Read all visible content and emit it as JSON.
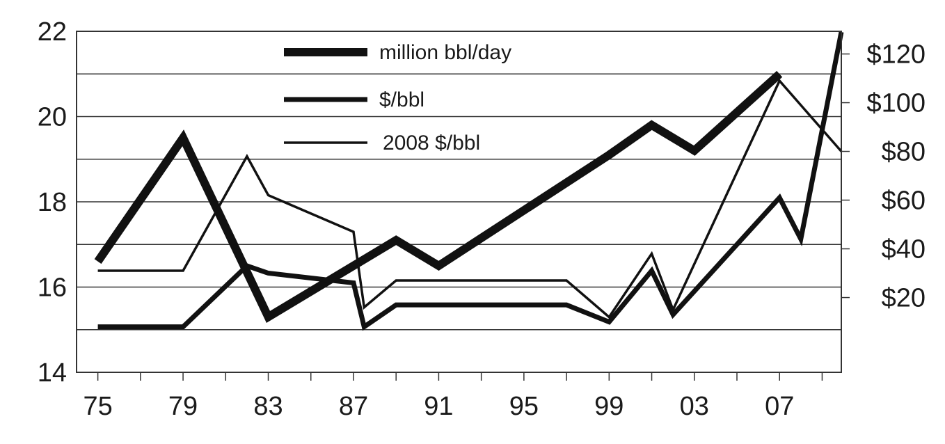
{
  "chart_data": {
    "type": "line",
    "title": "",
    "xlabel": "",
    "ylabel_left": "",
    "ylabel_right": "",
    "x": [
      1975,
      1979,
      1983,
      1987,
      1991,
      1995,
      1999,
      2003,
      2007
    ],
    "x_tick_labels": [
      "75",
      "79",
      "83",
      "87",
      "91",
      "95",
      "99",
      "03",
      "07"
    ],
    "xlim": [
      1974,
      2009.9
    ],
    "left_axis": {
      "ylim": [
        14,
        22
      ],
      "ticks": [
        14,
        16,
        18,
        20,
        22
      ],
      "tick_labels": [
        "14",
        "16",
        "18",
        "20",
        "22"
      ]
    },
    "right_axis": {
      "ylim": [
        -10.7,
        129.3
      ],
      "ticks": [
        20,
        40,
        60,
        80,
        100,
        120
      ],
      "tick_labels": [
        "$20",
        "$40",
        "$60",
        "$80",
        "$100",
        "$120"
      ]
    },
    "grid": {
      "horizontal": true,
      "vertical": false
    },
    "legend": {
      "placement": "top-center"
    },
    "series": [
      {
        "name": "million bbl/day",
        "axis": "left",
        "stroke": "#111111",
        "style": "thick",
        "points": [
          [
            1975,
            16.6
          ],
          [
            1979,
            19.5
          ],
          [
            1983,
            15.3
          ],
          [
            1989,
            17.1
          ],
          [
            1991,
            16.5
          ],
          [
            1999,
            19.1
          ],
          [
            2001,
            19.8
          ],
          [
            2003,
            19.2
          ],
          [
            2007,
            21.0
          ]
        ]
      },
      {
        "name": "$/bbl",
        "axis": "right",
        "stroke": "#111111",
        "style": "medium",
        "points": [
          [
            1975,
            8
          ],
          [
            1979,
            8
          ],
          [
            1982,
            33
          ],
          [
            1983,
            30
          ],
          [
            1987,
            26
          ],
          [
            1987.5,
            8
          ],
          [
            1989,
            17
          ],
          [
            1997,
            17
          ],
          [
            1999,
            10
          ],
          [
            2001,
            31
          ],
          [
            2002,
            13
          ],
          [
            2007,
            61
          ],
          [
            2008,
            44
          ],
          [
            2009.9,
            129
          ]
        ]
      },
      {
        "name": "2008 $/bbl",
        "axis": "right",
        "stroke": "#111111",
        "style": "thin",
        "points": [
          [
            1975,
            31
          ],
          [
            1979,
            31
          ],
          [
            1982,
            78
          ],
          [
            1983,
            62
          ],
          [
            1987,
            47
          ],
          [
            1987.5,
            16
          ],
          [
            1989,
            27
          ],
          [
            1997,
            27
          ],
          [
            1999,
            12
          ],
          [
            2001,
            38
          ],
          [
            2002,
            15
          ],
          [
            2007,
            109
          ],
          [
            2009.9,
            80
          ]
        ]
      }
    ]
  }
}
